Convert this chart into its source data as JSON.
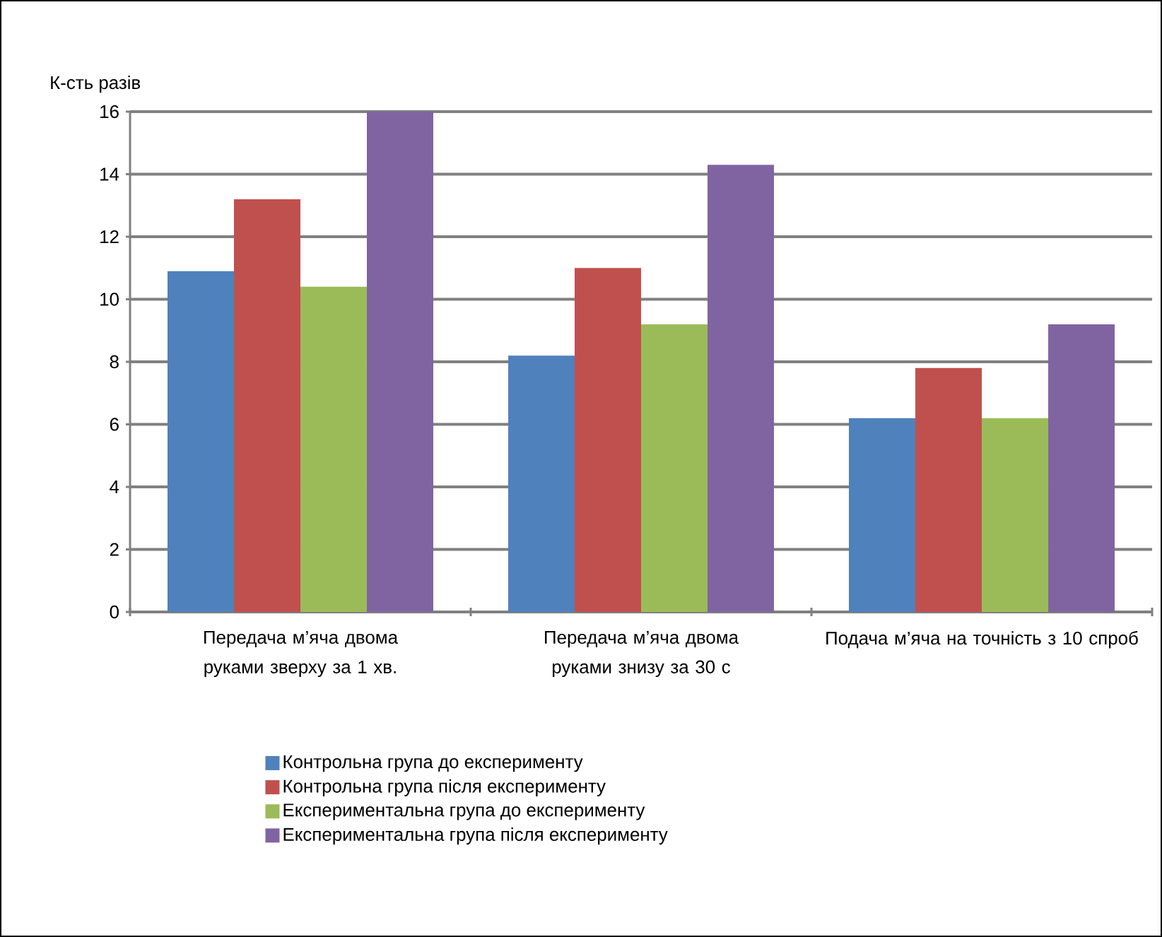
{
  "chart_data": {
    "type": "bar",
    "ylabel": "К-сть разів",
    "categories": [
      "Передача м’яча двома руками зверху за 1 хв.",
      "Передача м’яча двома руками знизу за 30 с",
      "Подача м’яча на точність з 10 спроб"
    ],
    "series": [
      {
        "name": "Контрольна група до експерименту",
        "color": "#4f81bd",
        "values": [
          10.9,
          8.2,
          6.2
        ]
      },
      {
        "name": "Контрольна група після експерименту",
        "color": "#c0504d",
        "values": [
          13.2,
          11,
          7.8
        ]
      },
      {
        "name": "Експериментальна група до експерименту",
        "color": "#9bbb59",
        "values": [
          10.4,
          9.2,
          6.2
        ]
      },
      {
        "name": "Експериментальна група після експерименту",
        "color": "#8064a2",
        "values": [
          16,
          14.3,
          9.2
        ]
      }
    ],
    "ylim": [
      0,
      16
    ],
    "yticks": [
      0,
      2,
      4,
      6,
      8,
      10,
      12,
      14,
      16
    ],
    "grid": "y",
    "legend": "bottom"
  }
}
